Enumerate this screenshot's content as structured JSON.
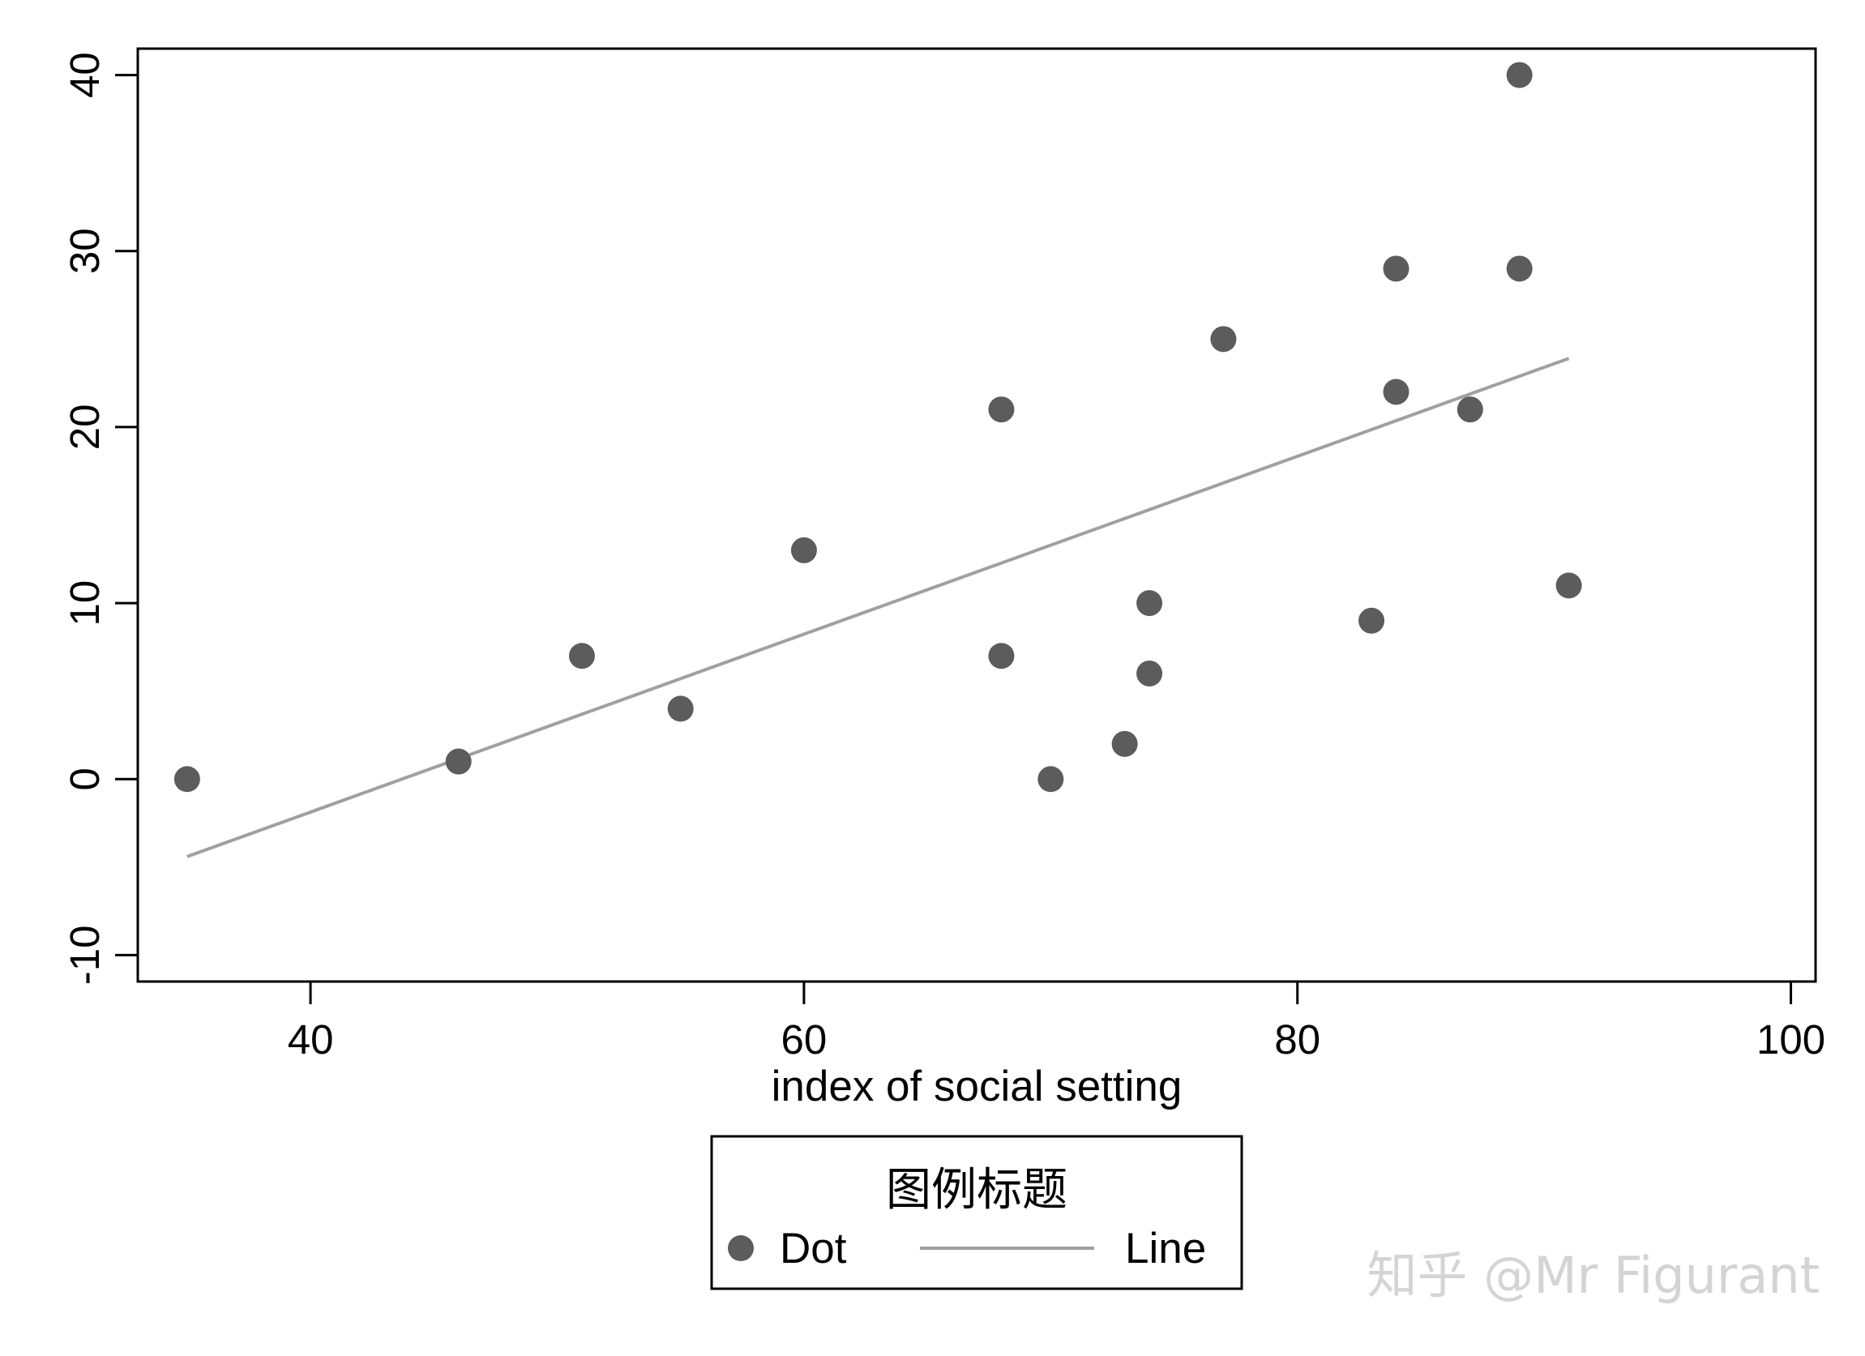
{
  "chart_data": {
    "type": "scatter",
    "xlabel": "index of social setting",
    "ylabel": "",
    "xlim": [
      33,
      101
    ],
    "ylim": [
      -11.5,
      41.5
    ],
    "xticks": [
      40,
      60,
      80,
      100
    ],
    "yticks": [
      -10,
      0,
      10,
      20,
      30,
      40
    ],
    "xtick_labels": [
      "40",
      "60",
      "80",
      "100"
    ],
    "ytick_labels": [
      "-10",
      "0",
      "10",
      "20",
      "30",
      "40"
    ],
    "grid": false,
    "legend_position": "bottom",
    "series": [
      {
        "name": "Dot",
        "kind": "scatter",
        "color": "#5c5c5c",
        "points": [
          {
            "x": 35,
            "y": 0
          },
          {
            "x": 46,
            "y": 1
          },
          {
            "x": 51,
            "y": 7
          },
          {
            "x": 55,
            "y": 4
          },
          {
            "x": 60,
            "y": 13
          },
          {
            "x": 68,
            "y": 21
          },
          {
            "x": 68,
            "y": 7
          },
          {
            "x": 70,
            "y": 0
          },
          {
            "x": 73,
            "y": 2
          },
          {
            "x": 74,
            "y": 10
          },
          {
            "x": 74,
            "y": 6
          },
          {
            "x": 77,
            "y": 25
          },
          {
            "x": 83,
            "y": 9
          },
          {
            "x": 84,
            "y": 29
          },
          {
            "x": 84,
            "y": 22
          },
          {
            "x": 87,
            "y": 21
          },
          {
            "x": 89,
            "y": 40
          },
          {
            "x": 89,
            "y": 29
          },
          {
            "x": 91,
            "y": 11
          }
        ]
      },
      {
        "name": "Line",
        "kind": "line",
        "color": "#a0a0a0",
        "points": [
          {
            "x": 35,
            "y": -4.4
          },
          {
            "x": 91,
            "y": 23.9
          }
        ]
      }
    ]
  },
  "legend": {
    "title": "图例标题",
    "items": [
      {
        "label": "Dot",
        "marker": "circle",
        "color": "#5c5c5c"
      },
      {
        "label": "Line",
        "marker": "line",
        "color": "#a0a0a0"
      }
    ]
  },
  "watermark": "知乎 @Mr Figurant"
}
